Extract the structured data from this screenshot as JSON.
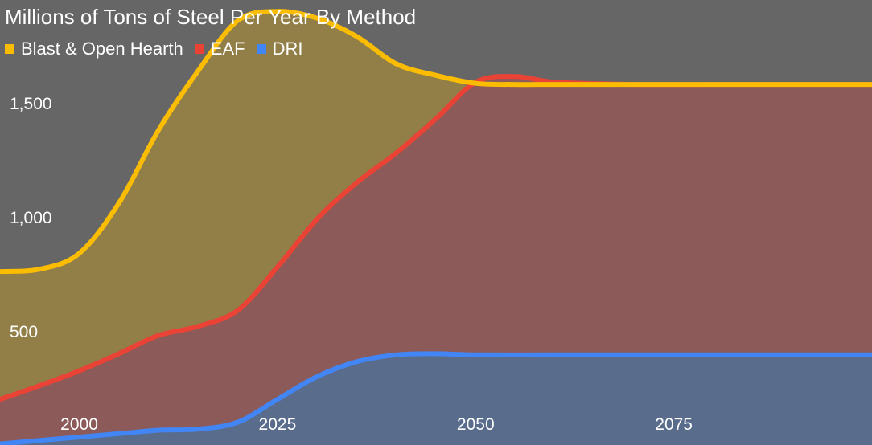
{
  "chart_data": {
    "type": "area",
    "title": "Millions of Tons of Steel Per Year By Method",
    "xlabel": "",
    "ylabel": "",
    "xlim": [
      1990,
      2100
    ],
    "ylim": [
      0,
      1950
    ],
    "x_ticks": [
      2000,
      2025,
      2050,
      2075
    ],
    "y_ticks": [
      500,
      1000,
      1500
    ],
    "grid": false,
    "legend_position": "top-left",
    "stacked": true,
    "series": [
      {
        "name": "Blast & Open Hearth",
        "color": "#FBBC04",
        "fill": "#917F47",
        "values": [
          [
            1990,
            760
          ],
          [
            1995,
            770
          ],
          [
            2000,
            840
          ],
          [
            2005,
            1060
          ],
          [
            2010,
            1380
          ],
          [
            2015,
            1640
          ],
          [
            2020,
            1860
          ],
          [
            2025,
            1900
          ],
          [
            2030,
            1870
          ],
          [
            2035,
            1790
          ],
          [
            2040,
            1670
          ],
          [
            2045,
            1620
          ],
          [
            2050,
            1585
          ],
          [
            2055,
            1580
          ],
          [
            2060,
            1580
          ],
          [
            2070,
            1580
          ],
          [
            2080,
            1580
          ],
          [
            2090,
            1580
          ],
          [
            2100,
            1580
          ]
        ]
      },
      {
        "name": "EAF",
        "color": "#EA4335",
        "fill": "#8C5A58",
        "values": [
          [
            1990,
            200
          ],
          [
            1995,
            260
          ],
          [
            2000,
            325
          ],
          [
            2005,
            400
          ],
          [
            2010,
            480
          ],
          [
            2015,
            520
          ],
          [
            2020,
            590
          ],
          [
            2025,
            780
          ],
          [
            2030,
            990
          ],
          [
            2035,
            1150
          ],
          [
            2040,
            1280
          ],
          [
            2045,
            1430
          ],
          [
            2050,
            1590
          ],
          [
            2055,
            1615
          ],
          [
            2060,
            1590
          ],
          [
            2070,
            1580
          ],
          [
            2080,
            1580
          ],
          [
            2090,
            1580
          ],
          [
            2100,
            1580
          ]
        ]
      },
      {
        "name": "DRI",
        "color": "#4285F4",
        "fill": "#5A6C8C",
        "values": [
          [
            1990,
            5
          ],
          [
            1995,
            20
          ],
          [
            2000,
            35
          ],
          [
            2005,
            50
          ],
          [
            2010,
            65
          ],
          [
            2015,
            70
          ],
          [
            2020,
            100
          ],
          [
            2025,
            200
          ],
          [
            2030,
            300
          ],
          [
            2035,
            365
          ],
          [
            2040,
            395
          ],
          [
            2045,
            400
          ],
          [
            2050,
            395
          ],
          [
            2060,
            395
          ],
          [
            2070,
            395
          ],
          [
            2080,
            395
          ],
          [
            2090,
            395
          ],
          [
            2100,
            395
          ]
        ]
      }
    ]
  }
}
